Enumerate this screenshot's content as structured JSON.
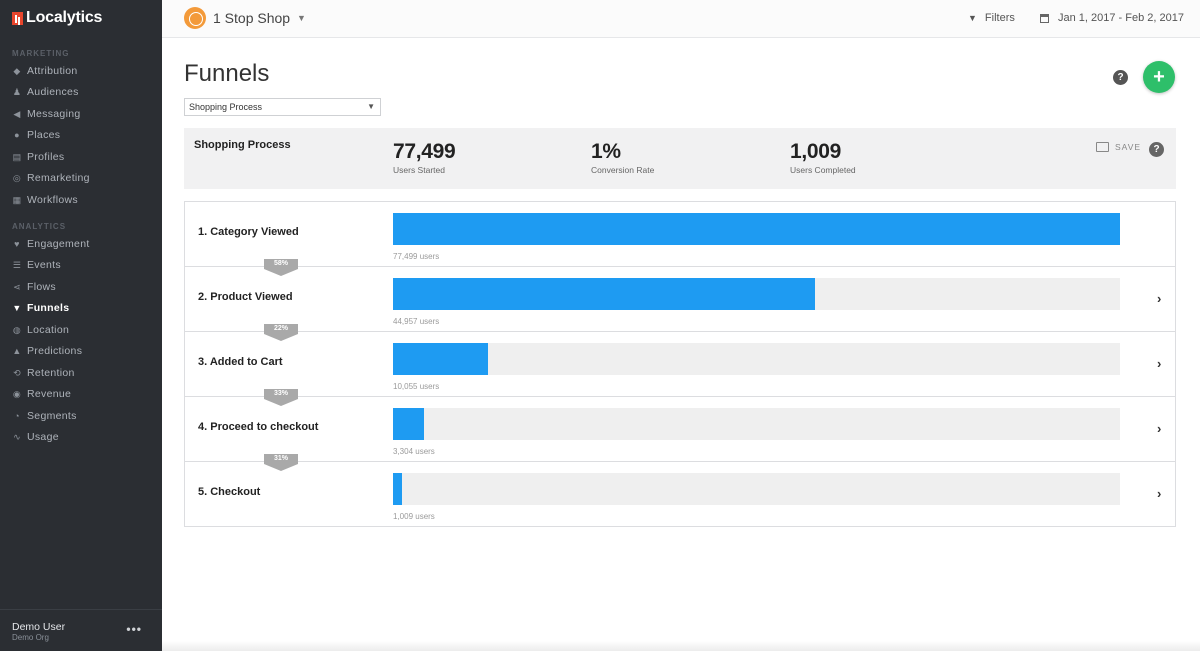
{
  "brand": {
    "name": "Localytics",
    "accent": "#e8452c"
  },
  "sidebar": {
    "sections": [
      {
        "title": "MARKETING"
      },
      {
        "title": "ANALYTICS"
      }
    ],
    "marketing_items": [
      {
        "label": "Attribution",
        "icon": "tag-icon"
      },
      {
        "label": "Audiences",
        "icon": "users-icon"
      },
      {
        "label": "Messaging",
        "icon": "megaphone-icon"
      },
      {
        "label": "Places",
        "icon": "map-pin-icon"
      },
      {
        "label": "Profiles",
        "icon": "profile-card-icon"
      },
      {
        "label": "Remarketing",
        "icon": "target-icon"
      },
      {
        "label": "Workflows",
        "icon": "workflow-icon"
      }
    ],
    "analytics_items": [
      {
        "label": "Engagement",
        "icon": "heart-icon"
      },
      {
        "label": "Events",
        "icon": "list-icon"
      },
      {
        "label": "Flows",
        "icon": "flows-icon"
      },
      {
        "label": "Funnels",
        "icon": "funnel-icon",
        "active": true
      },
      {
        "label": "Location",
        "icon": "globe-icon"
      },
      {
        "label": "Predictions",
        "icon": "flask-icon"
      },
      {
        "label": "Retention",
        "icon": "retention-icon"
      },
      {
        "label": "Revenue",
        "icon": "revenue-icon"
      },
      {
        "label": "Segments",
        "icon": "pie-icon"
      },
      {
        "label": "Usage",
        "icon": "pulse-icon"
      }
    ],
    "user": {
      "name": "Demo User",
      "org": "Demo Org",
      "more": "•••"
    }
  },
  "topbar": {
    "app_name": "1 Stop Shop",
    "filters_label": "Filters",
    "date_range": "Jan 1, 2017 - Feb 2, 2017"
  },
  "page": {
    "title": "Funnels",
    "help": "?",
    "add": "+",
    "selected_funnel": "Shopping Process"
  },
  "summary": {
    "name": "Shopping Process",
    "users_started": {
      "value": "77,499",
      "label": "Users Started"
    },
    "conversion_rate": {
      "value": "1%",
      "label": "Conversion Rate"
    },
    "users_completed": {
      "value": "1,009",
      "label": "Users Completed"
    },
    "save_label": "SAVE",
    "help": "?"
  },
  "steps": [
    {
      "label": "1.  Category Viewed",
      "users": "77,499 users",
      "fraction": 1.0,
      "chevron": false
    },
    {
      "label": "2.  Product Viewed",
      "users": "44,957 users",
      "fraction": 0.58,
      "chevron": true
    },
    {
      "label": "3.  Added to Cart",
      "users": "10,055 users",
      "fraction": 0.13,
      "chevron": true
    },
    {
      "label": "4.  Proceed to checkout",
      "users": "3,304 users",
      "fraction": 0.043,
      "chevron": true
    },
    {
      "label": "5.  Checkout",
      "users": "1,009 users",
      "fraction": 0.013,
      "chevron": true
    }
  ],
  "conversions": [
    "58%",
    "22%",
    "33%",
    "31%"
  ],
  "colors": {
    "bar": "#1e9bf2",
    "add_button": "#2ebf6a",
    "sidebar_bg": "#2b2e33"
  }
}
